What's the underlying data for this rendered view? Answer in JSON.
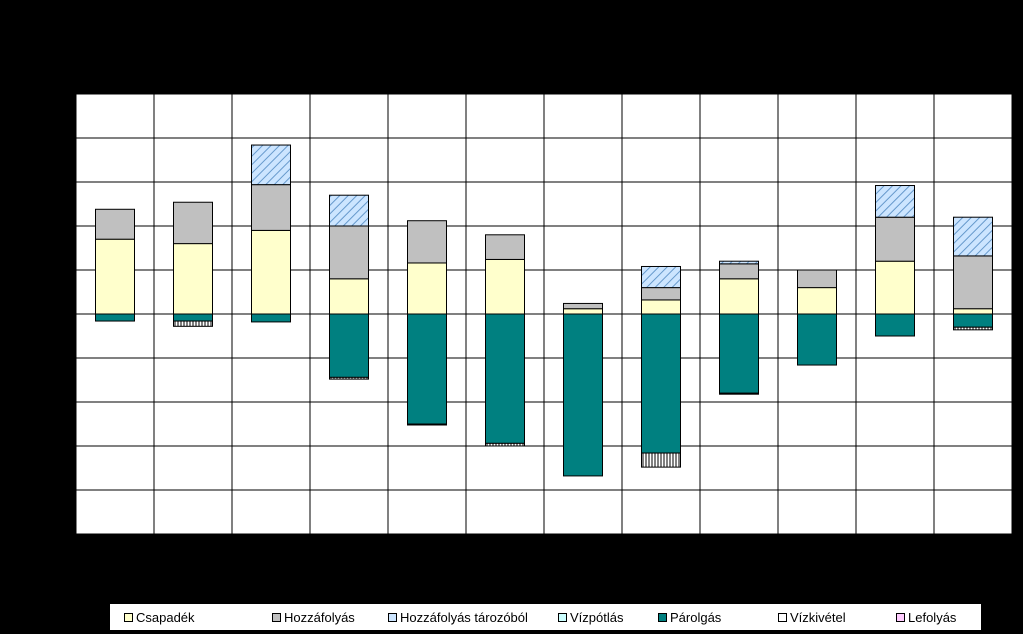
{
  "chart_data": {
    "type": "bar",
    "stacked": true,
    "title": "",
    "xlabel": "",
    "ylabel": "",
    "ylim": [
      -250,
      250
    ],
    "grid": true,
    "legend_position": "bottom",
    "categories": [
      "",
      "",
      "",
      "",
      "",
      "",
      "",
      "",
      "",
      "",
      "",
      ""
    ],
    "series": [
      {
        "name": "Csapadék",
        "color": "#FFFFCC",
        "values": [
          85,
          80,
          95,
          40,
          58,
          62,
          6,
          16,
          40,
          30,
          60,
          6
        ]
      },
      {
        "name": "Hozzáfolyás",
        "color": "#C0C0C0",
        "values": [
          34,
          47,
          52,
          60,
          48,
          28,
          6,
          14,
          17,
          20,
          50,
          60
        ]
      },
      {
        "name": "Hozzáfolyás tározóból",
        "color": "#CCE5FF",
        "pattern": "diagonal",
        "values": [
          0,
          0,
          45,
          35,
          0,
          0,
          0,
          24,
          3,
          0,
          36,
          44
        ]
      },
      {
        "name": "Vízpótlás",
        "color": "#CCFFFF",
        "values": [
          0,
          0,
          0,
          0,
          0,
          0,
          0,
          0,
          0,
          0,
          0,
          0
        ]
      },
      {
        "name": "Párolgás",
        "color": "#008080",
        "values": [
          -8,
          -8,
          -9,
          -72,
          -125,
          -147,
          -184,
          -158,
          -90,
          -58,
          -25,
          -15
        ]
      },
      {
        "name": "Vízkivétel",
        "color": "#FFFFFF",
        "pattern": "vertical",
        "values": [
          0,
          -6,
          0,
          -2,
          -1,
          -3,
          0,
          -16,
          -1,
          0,
          0,
          -3
        ]
      },
      {
        "name": "Lefolyás",
        "color": "#FFCCFF",
        "values": [
          0,
          0,
          0,
          0,
          0,
          0,
          0,
          0,
          0,
          0,
          0,
          0
        ]
      }
    ]
  }
}
